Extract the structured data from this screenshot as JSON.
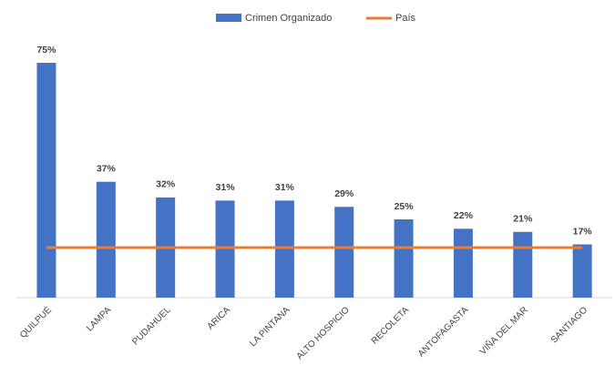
{
  "chart_data": {
    "type": "bar",
    "categories": [
      "QUILPUÉ",
      "LAMPA",
      "PUDAHUEL",
      "ARICA",
      "LA PINTANA",
      "ALTO HOSPICIO",
      "RECOLETA",
      "ANTOFAGASTA",
      "VIÑA DEL MAR",
      "SANTIAGO"
    ],
    "series": [
      {
        "name": "Crimen Organizado",
        "type": "bar",
        "color": "#4472c4",
        "values": [
          75,
          37,
          32,
          31,
          31,
          29,
          25,
          22,
          21,
          17
        ],
        "value_labels": [
          "75%",
          "37%",
          "32%",
          "31%",
          "31%",
          "29%",
          "25%",
          "22%",
          "21%",
          "17%"
        ]
      },
      {
        "name": "País",
        "type": "line",
        "color": "#ed7d31",
        "values": [
          16,
          16,
          16,
          16,
          16,
          16,
          16,
          16,
          16,
          16
        ]
      }
    ]
  }
}
